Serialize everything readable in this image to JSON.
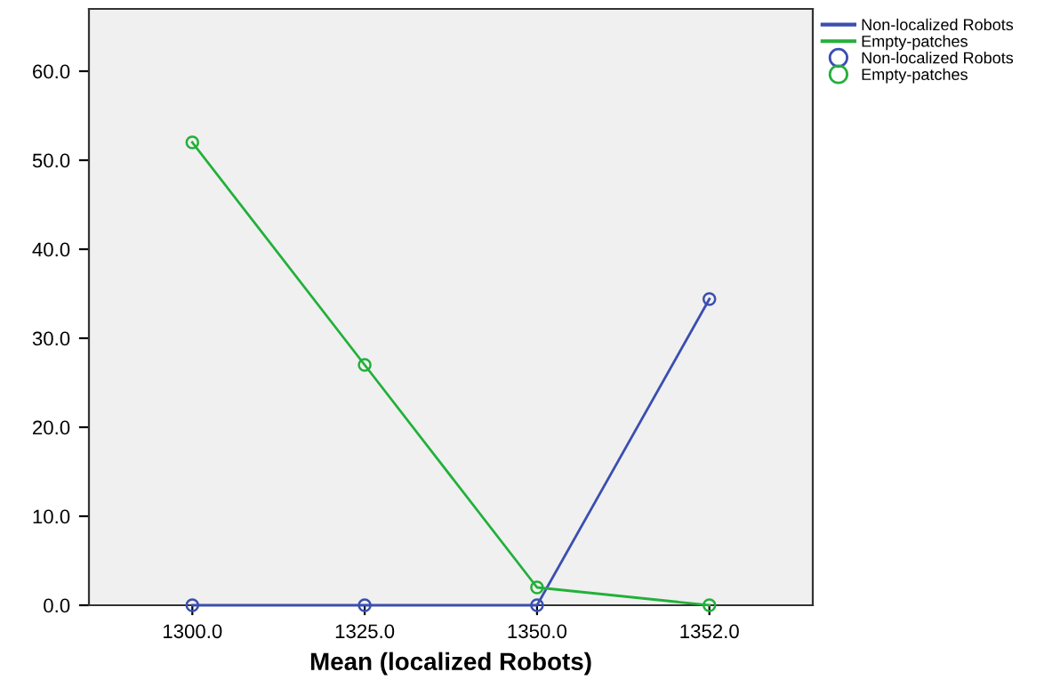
{
  "chart_data": {
    "type": "line",
    "xlabel": "Mean (localized Robots)",
    "categories": [
      "1300.0",
      "1325.0",
      "1350.0",
      "1352.0"
    ],
    "series": [
      {
        "name": "Non-localized Robots",
        "color": "#3a4fb0",
        "values": [
          0,
          0,
          0,
          34.4
        ]
      },
      {
        "name": "Empty-patches",
        "color": "#22b03a",
        "values": [
          52,
          27,
          2,
          0
        ]
      }
    ],
    "ylim": [
      0,
      67
    ],
    "yticks": [
      {
        "value": 0,
        "label": "0.0"
      },
      {
        "value": 10,
        "label": "10.0"
      },
      {
        "value": 20,
        "label": "20.0"
      },
      {
        "value": 30,
        "label": "30.0"
      },
      {
        "value": 40,
        "label": "40.0"
      },
      {
        "value": 50,
        "label": "50.0"
      },
      {
        "value": 60,
        "label": "60.0"
      }
    ],
    "marker": "circle",
    "line_style": "solid",
    "grid": false,
    "legend": "top right"
  }
}
